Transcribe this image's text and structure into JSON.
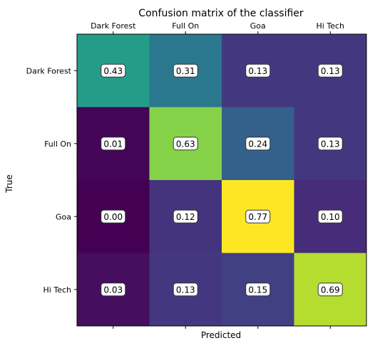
{
  "chart_data": {
    "type": "heatmap",
    "title": "Confusion matrix of the classifier",
    "xlabel": "Predicted",
    "ylabel": "True",
    "x_categories": [
      "Dark Forest",
      "Full On",
      "Goa",
      "Hi Tech"
    ],
    "y_categories": [
      "Dark Forest",
      "Full On",
      "Goa",
      "Hi Tech"
    ],
    "x_tick_position": "top",
    "colormap": "viridis",
    "value_range": [
      0,
      0.77
    ],
    "values": [
      [
        0.43,
        0.31,
        0.13,
        0.13
      ],
      [
        0.01,
        0.63,
        0.24,
        0.13
      ],
      [
        0.0,
        0.12,
        0.77,
        0.1
      ],
      [
        0.03,
        0.13,
        0.15,
        0.69
      ]
    ],
    "labels": [
      [
        "0.43",
        "0.31",
        "0.13",
        "0.13"
      ],
      [
        "0.01",
        "0.63",
        "0.24",
        "0.13"
      ],
      [
        "0.00",
        "0.12",
        "0.77",
        "0.10"
      ],
      [
        "0.03",
        "0.13",
        "0.15",
        "0.69"
      ]
    ]
  }
}
